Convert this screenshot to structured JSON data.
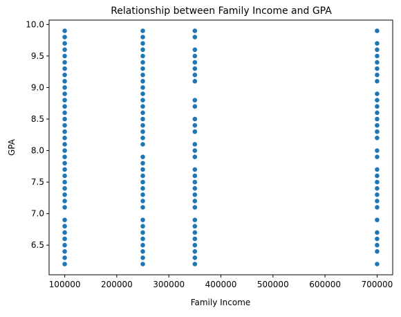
{
  "chart_data": {
    "type": "scatter",
    "title": "Relationship between Family Income and GPA",
    "xlabel": "Family Income",
    "ylabel": "GPA",
    "xlim": [
      70000,
      730000
    ],
    "ylim": [
      6.03,
      10.07
    ],
    "xticks": [
      100000,
      200000,
      300000,
      400000,
      500000,
      600000,
      700000
    ],
    "yticks": [
      6.5,
      7.0,
      7.5,
      8.0,
      8.5,
      9.0,
      9.5,
      10.0
    ],
    "xtick_labels": [
      "100000",
      "200000",
      "300000",
      "400000",
      "500000",
      "600000",
      "700000"
    ],
    "ytick_labels": [
      "6.5",
      "7.0",
      "7.5",
      "8.0",
      "8.5",
      "9.0",
      "9.5",
      "10.0"
    ],
    "grid": false,
    "marker_color": "#1f77b4",
    "points": [
      {
        "x": 100000,
        "y": 6.2
      },
      {
        "x": 100000,
        "y": 6.3
      },
      {
        "x": 100000,
        "y": 6.4
      },
      {
        "x": 100000,
        "y": 6.5
      },
      {
        "x": 100000,
        "y": 6.6
      },
      {
        "x": 100000,
        "y": 6.7
      },
      {
        "x": 100000,
        "y": 6.8
      },
      {
        "x": 100000,
        "y": 6.9
      },
      {
        "x": 100000,
        "y": 7.1
      },
      {
        "x": 100000,
        "y": 7.2
      },
      {
        "x": 100000,
        "y": 7.3
      },
      {
        "x": 100000,
        "y": 7.4
      },
      {
        "x": 100000,
        "y": 7.5
      },
      {
        "x": 100000,
        "y": 7.6
      },
      {
        "x": 100000,
        "y": 7.7
      },
      {
        "x": 100000,
        "y": 7.8
      },
      {
        "x": 100000,
        "y": 7.9
      },
      {
        "x": 100000,
        "y": 8.0
      },
      {
        "x": 100000,
        "y": 8.1
      },
      {
        "x": 100000,
        "y": 8.2
      },
      {
        "x": 100000,
        "y": 8.3
      },
      {
        "x": 100000,
        "y": 8.4
      },
      {
        "x": 100000,
        "y": 8.5
      },
      {
        "x": 100000,
        "y": 8.6
      },
      {
        "x": 100000,
        "y": 8.7
      },
      {
        "x": 100000,
        "y": 8.8
      },
      {
        "x": 100000,
        "y": 8.9
      },
      {
        "x": 100000,
        "y": 9.0
      },
      {
        "x": 100000,
        "y": 9.1
      },
      {
        "x": 100000,
        "y": 9.2
      },
      {
        "x": 100000,
        "y": 9.3
      },
      {
        "x": 100000,
        "y": 9.4
      },
      {
        "x": 100000,
        "y": 9.5
      },
      {
        "x": 100000,
        "y": 9.6
      },
      {
        "x": 100000,
        "y": 9.7
      },
      {
        "x": 100000,
        "y": 9.8
      },
      {
        "x": 100000,
        "y": 9.9
      },
      {
        "x": 250000,
        "y": 6.2
      },
      {
        "x": 250000,
        "y": 6.3
      },
      {
        "x": 250000,
        "y": 6.4
      },
      {
        "x": 250000,
        "y": 6.5
      },
      {
        "x": 250000,
        "y": 6.6
      },
      {
        "x": 250000,
        "y": 6.7
      },
      {
        "x": 250000,
        "y": 6.8
      },
      {
        "x": 250000,
        "y": 6.9
      },
      {
        "x": 250000,
        "y": 7.1
      },
      {
        "x": 250000,
        "y": 7.2
      },
      {
        "x": 250000,
        "y": 7.3
      },
      {
        "x": 250000,
        "y": 7.4
      },
      {
        "x": 250000,
        "y": 7.5
      },
      {
        "x": 250000,
        "y": 7.6
      },
      {
        "x": 250000,
        "y": 7.7
      },
      {
        "x": 250000,
        "y": 7.8
      },
      {
        "x": 250000,
        "y": 7.9
      },
      {
        "x": 250000,
        "y": 8.1
      },
      {
        "x": 250000,
        "y": 8.2
      },
      {
        "x": 250000,
        "y": 8.3
      },
      {
        "x": 250000,
        "y": 8.4
      },
      {
        "x": 250000,
        "y": 8.5
      },
      {
        "x": 250000,
        "y": 8.6
      },
      {
        "x": 250000,
        "y": 8.7
      },
      {
        "x": 250000,
        "y": 8.8
      },
      {
        "x": 250000,
        "y": 8.9
      },
      {
        "x": 250000,
        "y": 9.0
      },
      {
        "x": 250000,
        "y": 9.1
      },
      {
        "x": 250000,
        "y": 9.2
      },
      {
        "x": 250000,
        "y": 9.3
      },
      {
        "x": 250000,
        "y": 9.4
      },
      {
        "x": 250000,
        "y": 9.5
      },
      {
        "x": 250000,
        "y": 9.6
      },
      {
        "x": 250000,
        "y": 9.7
      },
      {
        "x": 250000,
        "y": 9.8
      },
      {
        "x": 250000,
        "y": 9.9
      },
      {
        "x": 350000,
        "y": 6.2
      },
      {
        "x": 350000,
        "y": 6.3
      },
      {
        "x": 350000,
        "y": 6.4
      },
      {
        "x": 350000,
        "y": 6.5
      },
      {
        "x": 350000,
        "y": 6.6
      },
      {
        "x": 350000,
        "y": 6.7
      },
      {
        "x": 350000,
        "y": 6.8
      },
      {
        "x": 350000,
        "y": 6.9
      },
      {
        "x": 350000,
        "y": 7.1
      },
      {
        "x": 350000,
        "y": 7.2
      },
      {
        "x": 350000,
        "y": 7.3
      },
      {
        "x": 350000,
        "y": 7.4
      },
      {
        "x": 350000,
        "y": 7.5
      },
      {
        "x": 350000,
        "y": 7.6
      },
      {
        "x": 350000,
        "y": 7.7
      },
      {
        "x": 350000,
        "y": 7.9
      },
      {
        "x": 350000,
        "y": 8.0
      },
      {
        "x": 350000,
        "y": 8.1
      },
      {
        "x": 350000,
        "y": 8.3
      },
      {
        "x": 350000,
        "y": 8.4
      },
      {
        "x": 350000,
        "y": 8.5
      },
      {
        "x": 350000,
        "y": 8.7
      },
      {
        "x": 350000,
        "y": 8.8
      },
      {
        "x": 350000,
        "y": 9.1
      },
      {
        "x": 350000,
        "y": 9.2
      },
      {
        "x": 350000,
        "y": 9.3
      },
      {
        "x": 350000,
        "y": 9.4
      },
      {
        "x": 350000,
        "y": 9.5
      },
      {
        "x": 350000,
        "y": 9.6
      },
      {
        "x": 350000,
        "y": 9.8
      },
      {
        "x": 350000,
        "y": 9.9
      },
      {
        "x": 700000,
        "y": 6.2
      },
      {
        "x": 700000,
        "y": 6.4
      },
      {
        "x": 700000,
        "y": 6.5
      },
      {
        "x": 700000,
        "y": 6.6
      },
      {
        "x": 700000,
        "y": 6.7
      },
      {
        "x": 700000,
        "y": 6.9
      },
      {
        "x": 700000,
        "y": 7.1
      },
      {
        "x": 700000,
        "y": 7.2
      },
      {
        "x": 700000,
        "y": 7.3
      },
      {
        "x": 700000,
        "y": 7.4
      },
      {
        "x": 700000,
        "y": 7.5
      },
      {
        "x": 700000,
        "y": 7.6
      },
      {
        "x": 700000,
        "y": 7.7
      },
      {
        "x": 700000,
        "y": 7.9
      },
      {
        "x": 700000,
        "y": 8.0
      },
      {
        "x": 700000,
        "y": 8.2
      },
      {
        "x": 700000,
        "y": 8.3
      },
      {
        "x": 700000,
        "y": 8.4
      },
      {
        "x": 700000,
        "y": 8.5
      },
      {
        "x": 700000,
        "y": 8.6
      },
      {
        "x": 700000,
        "y": 8.7
      },
      {
        "x": 700000,
        "y": 8.8
      },
      {
        "x": 700000,
        "y": 8.9
      },
      {
        "x": 700000,
        "y": 9.1
      },
      {
        "x": 700000,
        "y": 9.2
      },
      {
        "x": 700000,
        "y": 9.3
      },
      {
        "x": 700000,
        "y": 9.4
      },
      {
        "x": 700000,
        "y": 9.5
      },
      {
        "x": 700000,
        "y": 9.6
      },
      {
        "x": 700000,
        "y": 9.7
      },
      {
        "x": 700000,
        "y": 9.9
      }
    ]
  }
}
